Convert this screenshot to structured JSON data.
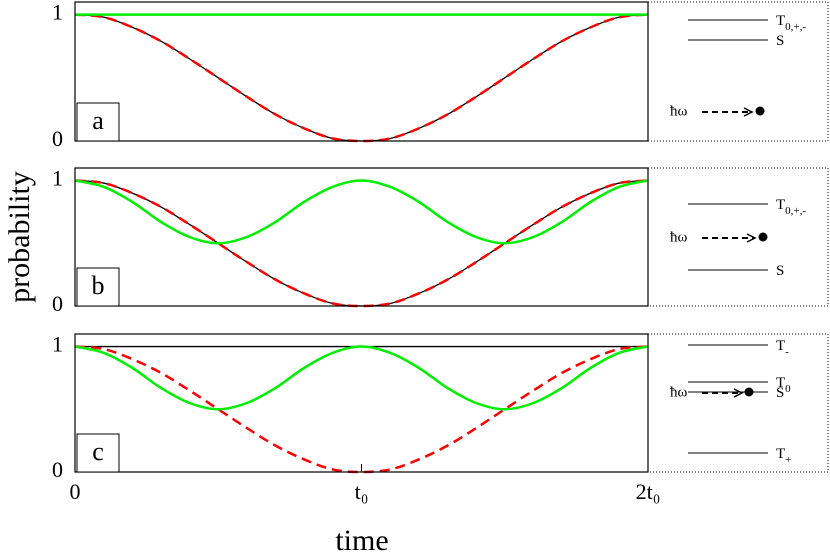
{
  "chart_data": [
    {
      "type": "line",
      "label": "a",
      "x": [
        0,
        0.1,
        0.2,
        0.3,
        0.4,
        0.5,
        0.6,
        0.7,
        0.8,
        0.9,
        1,
        1.1,
        1.2,
        1.3,
        1.4,
        1.5,
        1.6,
        1.7,
        1.8,
        1.9,
        2
      ],
      "xlim": [
        0,
        2
      ],
      "ylim": [
        0,
        1.1
      ],
      "yticks": [
        0,
        1
      ],
      "series": [
        {
          "color": "#000000",
          "style": "solid",
          "values": [
            1,
            0.98,
            0.9,
            0.79,
            0.65,
            0.5,
            0.35,
            0.21,
            0.1,
            0.02,
            0,
            0.02,
            0.1,
            0.21,
            0.35,
            0.5,
            0.65,
            0.79,
            0.9,
            0.98,
            1
          ]
        },
        {
          "color": "#ff0000",
          "style": "dashed",
          "values": [
            1,
            0.98,
            0.9,
            0.79,
            0.65,
            0.5,
            0.35,
            0.21,
            0.1,
            0.02,
            0,
            0.02,
            0.1,
            0.21,
            0.35,
            0.5,
            0.65,
            0.79,
            0.9,
            0.98,
            1
          ]
        },
        {
          "color": "#00ee00",
          "style": "solid",
          "values": [
            1,
            1,
            1,
            1,
            1,
            1,
            1,
            1,
            1,
            1,
            1,
            1,
            1,
            1,
            1,
            1,
            1,
            1,
            1,
            1,
            1
          ]
        }
      ]
    },
    {
      "type": "line",
      "label": "b",
      "x": [
        0,
        0.1,
        0.2,
        0.3,
        0.4,
        0.5,
        0.6,
        0.7,
        0.8,
        0.9,
        1,
        1.1,
        1.2,
        1.3,
        1.4,
        1.5,
        1.6,
        1.7,
        1.8,
        1.9,
        2
      ],
      "xlim": [
        0,
        2
      ],
      "ylim": [
        0,
        1.1
      ],
      "yticks": [
        0,
        1
      ],
      "series": [
        {
          "color": "#000000",
          "style": "solid",
          "values": [
            1,
            0.98,
            0.9,
            0.79,
            0.65,
            0.5,
            0.35,
            0.21,
            0.1,
            0.02,
            0,
            0.02,
            0.1,
            0.21,
            0.35,
            0.5,
            0.65,
            0.79,
            0.9,
            0.98,
            1
          ]
        },
        {
          "color": "#ff0000",
          "style": "dashed",
          "values": [
            1,
            0.98,
            0.9,
            0.79,
            0.65,
            0.5,
            0.35,
            0.21,
            0.1,
            0.02,
            0,
            0.02,
            0.1,
            0.21,
            0.35,
            0.5,
            0.65,
            0.79,
            0.9,
            0.98,
            1
          ]
        },
        {
          "color": "#00ee00",
          "style": "solid",
          "values": [
            1,
            0.95,
            0.83,
            0.67,
            0.55,
            0.5,
            0.55,
            0.67,
            0.83,
            0.95,
            1,
            0.95,
            0.83,
            0.67,
            0.55,
            0.5,
            0.55,
            0.67,
            0.83,
            0.95,
            1
          ]
        }
      ]
    },
    {
      "type": "line",
      "label": "c",
      "x": [
        0,
        0.1,
        0.2,
        0.3,
        0.4,
        0.5,
        0.6,
        0.7,
        0.8,
        0.9,
        1,
        1.1,
        1.2,
        1.3,
        1.4,
        1.5,
        1.6,
        1.7,
        1.8,
        1.9,
        2
      ],
      "xlim": [
        0,
        2
      ],
      "ylim": [
        0,
        1.1
      ],
      "yticks": [
        0,
        1
      ],
      "xticks": [
        0,
        {
          "value": 1,
          "label": "t₀"
        },
        {
          "value": 2,
          "label": "2t₀"
        }
      ],
      "series": [
        {
          "color": "#000000",
          "style": "solid",
          "values": [
            1,
            1,
            1,
            1,
            1,
            1,
            1,
            1,
            1,
            1,
            1,
            1,
            1,
            1,
            1,
            1,
            1,
            1,
            1,
            1,
            1
          ]
        },
        {
          "color": "#ff0000",
          "style": "dashed",
          "values": [
            1,
            0.98,
            0.9,
            0.79,
            0.65,
            0.5,
            0.35,
            0.21,
            0.1,
            0.02,
            0,
            0.02,
            0.1,
            0.21,
            0.35,
            0.5,
            0.65,
            0.79,
            0.9,
            0.98,
            1
          ]
        },
        {
          "color": "#00ee00",
          "style": "solid",
          "values": [
            1,
            0.95,
            0.83,
            0.67,
            0.55,
            0.5,
            0.55,
            0.67,
            0.83,
            0.95,
            1,
            0.95,
            0.83,
            0.67,
            0.55,
            0.5,
            0.55,
            0.67,
            0.83,
            0.95,
            1
          ]
        }
      ]
    }
  ],
  "shared": {
    "ylabel": "probability",
    "xlabel": "time"
  },
  "diagrams": [
    {
      "levels": [
        {
          "label": "T",
          "sub": "0,+,-"
        },
        {
          "label": "S"
        }
      ],
      "photon": "ħω"
    },
    {
      "levels": [
        {
          "label": "T",
          "sub": "0,+,-"
        },
        {
          "label": "S"
        }
      ],
      "photon": "ħω"
    },
    {
      "levels": [
        {
          "label": "T",
          "sub": "-"
        },
        {
          "label": "T",
          "sub": "0"
        },
        {
          "label": "S"
        },
        {
          "label": "T",
          "sub": "+"
        }
      ],
      "photon": "ħω"
    }
  ]
}
